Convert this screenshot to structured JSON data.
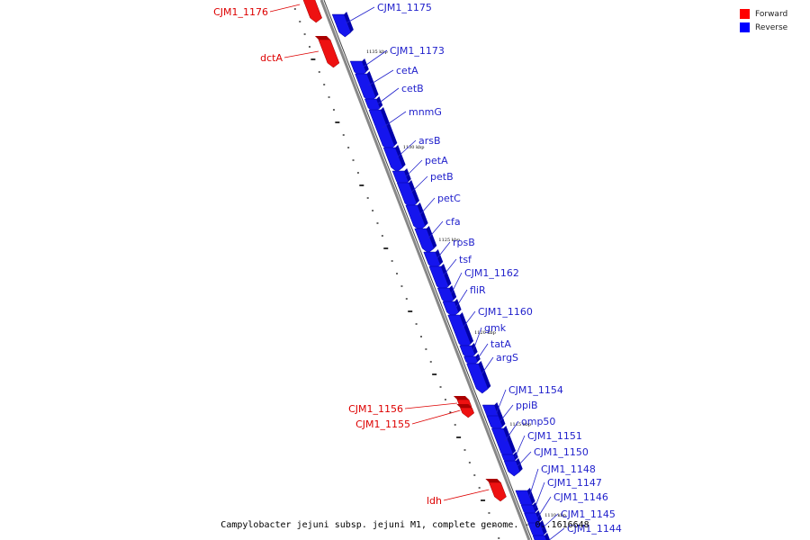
{
  "caption": "Campylobacter jejuni subsp. jejuni M1, complete genome. - 0..1616648",
  "legend": {
    "items": [
      {
        "label": "Forward",
        "color": "#ff0000"
      },
      {
        "label": "Reverse",
        "color": "#0000ff"
      }
    ]
  },
  "colors": {
    "forward": "#ee1111",
    "reverse": "#1515ee",
    "axis": "#888888"
  },
  "ticks": [
    {
      "kbp": 1135,
      "label": "1135 kbp"
    },
    {
      "kbp": 1130,
      "label": "1130 kbp"
    },
    {
      "kbp": 1125,
      "label": "1125 kbp"
    },
    {
      "kbp": 1120,
      "label": "1120 kbp"
    },
    {
      "kbp": 1115,
      "label": "1115 kbp"
    },
    {
      "kbp": 1110,
      "label": "1110 kbp"
    }
  ],
  "genes": [
    {
      "name": "CJM1_1176",
      "strand": "forward"
    },
    {
      "name": "CJM1_1175",
      "strand": "reverse"
    },
    {
      "name": "dctA",
      "strand": "forward"
    },
    {
      "name": "CJM1_1173",
      "strand": "reverse"
    },
    {
      "name": "cetA",
      "strand": "reverse"
    },
    {
      "name": "cetB",
      "strand": "reverse"
    },
    {
      "name": "mnmG",
      "strand": "reverse"
    },
    {
      "name": "arsB",
      "strand": "reverse"
    },
    {
      "name": "petA",
      "strand": "reverse"
    },
    {
      "name": "petB",
      "strand": "reverse"
    },
    {
      "name": "petC",
      "strand": "reverse"
    },
    {
      "name": "cfa",
      "strand": "reverse"
    },
    {
      "name": "rpsB",
      "strand": "reverse"
    },
    {
      "name": "tsf",
      "strand": "reverse"
    },
    {
      "name": "CJM1_1162",
      "strand": "reverse"
    },
    {
      "name": "fliR",
      "strand": "reverse"
    },
    {
      "name": "CJM1_1160",
      "strand": "reverse"
    },
    {
      "name": "gmk",
      "strand": "reverse"
    },
    {
      "name": "tatA",
      "strand": "reverse"
    },
    {
      "name": "argS",
      "strand": "reverse"
    },
    {
      "name": "CJM1_1154",
      "strand": "reverse"
    },
    {
      "name": "CJM1_1156",
      "strand": "forward"
    },
    {
      "name": "CJM1_1155",
      "strand": "forward"
    },
    {
      "name": "ppiB",
      "strand": "reverse"
    },
    {
      "name": "omp50",
      "strand": "reverse"
    },
    {
      "name": "CJM1_1151",
      "strand": "reverse"
    },
    {
      "name": "CJM1_1150",
      "strand": "reverse"
    },
    {
      "name": "CJM1_1148",
      "strand": "reverse"
    },
    {
      "name": "CJM1_1147",
      "strand": "reverse"
    },
    {
      "name": "ldh",
      "strand": "forward"
    },
    {
      "name": "CJM1_1146",
      "strand": "reverse"
    },
    {
      "name": "CJM1_1145",
      "strand": "reverse"
    },
    {
      "name": "CJM1_1144",
      "strand": "reverse"
    }
  ]
}
